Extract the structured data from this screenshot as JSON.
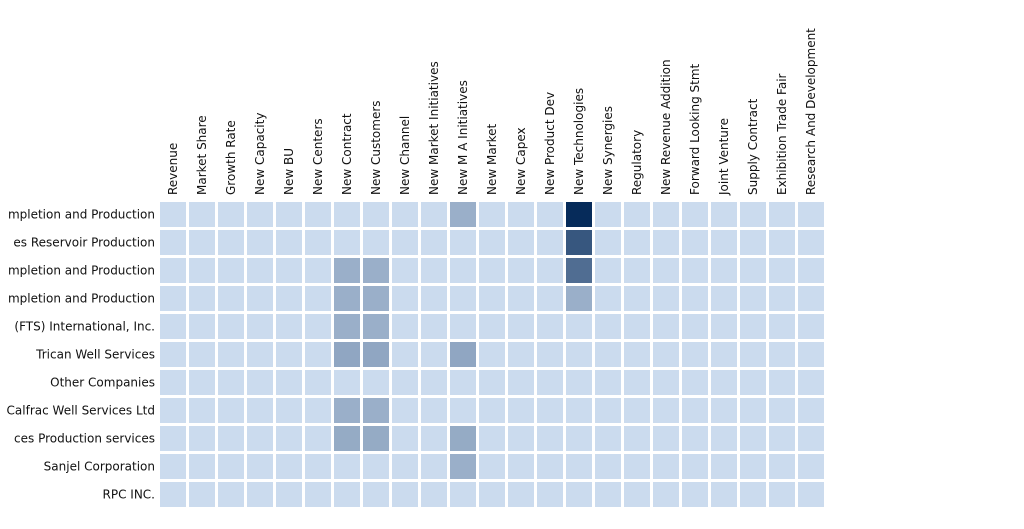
{
  "chart_data": {
    "type": "heatmap",
    "columns": [
      "Revenue",
      "Market Share",
      "Growth Rate",
      "New Capacity",
      "New BU",
      "New Centers",
      "New Contract",
      "New Customers",
      "New Channel",
      "New Market Initiatives",
      "New M A Initiatives",
      "New Market",
      "New Capex",
      "New Product Dev",
      "New Technologies",
      "New Synergies",
      "Regulatory",
      "New Revenue Addition",
      "Forward Looking Stmt",
      "Joint Venture",
      "Supply Contract",
      "Exhibition Trade Fair",
      "Research And Development"
    ],
    "rows": [
      "mpletion and Production",
      "es Reservoir Production",
      "mpletion and Production",
      "mpletion and Production",
      "(FTS) International, Inc.",
      "Trican Well Services",
      "Other Companies",
      "Calfrac Well Services Ltd",
      "ces Production services",
      "Sanjel Corporation",
      "RPC INC."
    ],
    "values": [
      [
        0,
        0,
        0,
        0,
        0,
        0,
        0,
        0,
        0,
        0,
        1,
        0,
        0,
        0,
        4,
        0,
        0,
        0,
        0,
        0,
        0,
        0,
        0
      ],
      [
        0,
        0,
        0,
        0,
        0,
        0,
        0,
        0,
        0,
        0,
        0,
        0,
        0,
        0,
        3,
        0,
        0,
        0,
        0,
        0,
        0,
        0,
        0
      ],
      [
        0,
        0,
        0,
        0,
        0,
        0,
        1,
        1,
        0,
        0,
        0,
        0,
        0,
        0,
        2.5,
        0,
        0,
        0,
        0,
        0,
        0,
        0,
        0
      ],
      [
        0,
        0,
        0,
        0,
        0,
        0,
        1,
        1,
        0,
        0,
        0,
        0,
        0,
        0,
        1,
        0,
        0,
        0,
        0,
        0,
        0,
        0,
        0
      ],
      [
        0,
        0,
        0,
        0,
        0,
        0,
        1,
        1,
        0,
        0,
        0,
        0,
        0,
        0,
        0,
        0,
        0,
        0,
        0,
        0,
        0,
        0,
        0
      ],
      [
        0,
        0,
        0,
        0,
        0,
        0,
        1.2,
        1.2,
        0,
        0,
        1.2,
        0,
        0,
        0,
        0,
        0,
        0,
        0,
        0,
        0,
        0,
        0,
        0
      ],
      [
        0,
        0,
        0,
        0,
        0,
        0,
        0,
        0,
        0,
        0,
        0,
        0,
        0,
        0,
        0,
        0,
        0,
        0,
        0,
        0,
        0,
        0,
        0
      ],
      [
        0,
        0,
        0,
        0,
        0,
        0,
        1,
        1,
        0,
        0,
        0,
        0,
        0,
        0,
        0,
        0,
        0,
        0,
        0,
        0,
        0,
        0,
        0
      ],
      [
        0,
        0,
        0,
        0,
        0,
        0,
        1.1,
        1.1,
        0,
        0,
        1.1,
        0,
        0,
        0,
        0,
        0,
        0,
        0,
        0,
        0,
        0,
        0,
        0
      ],
      [
        0,
        0,
        0,
        0,
        0,
        0,
        0,
        0,
        0,
        0,
        1,
        0,
        0,
        0,
        0,
        0,
        0,
        0,
        0,
        0,
        0,
        0,
        0
      ],
      [
        0,
        0,
        0,
        0,
        0,
        0,
        0,
        0,
        0,
        0,
        0,
        0,
        0,
        0,
        0,
        0,
        0,
        0,
        0,
        0,
        0,
        0,
        0
      ]
    ],
    "value_range": [
      0,
      4
    ],
    "color_low": "#cbdbee",
    "color_high": "#062b5a",
    "legend": "none"
  }
}
